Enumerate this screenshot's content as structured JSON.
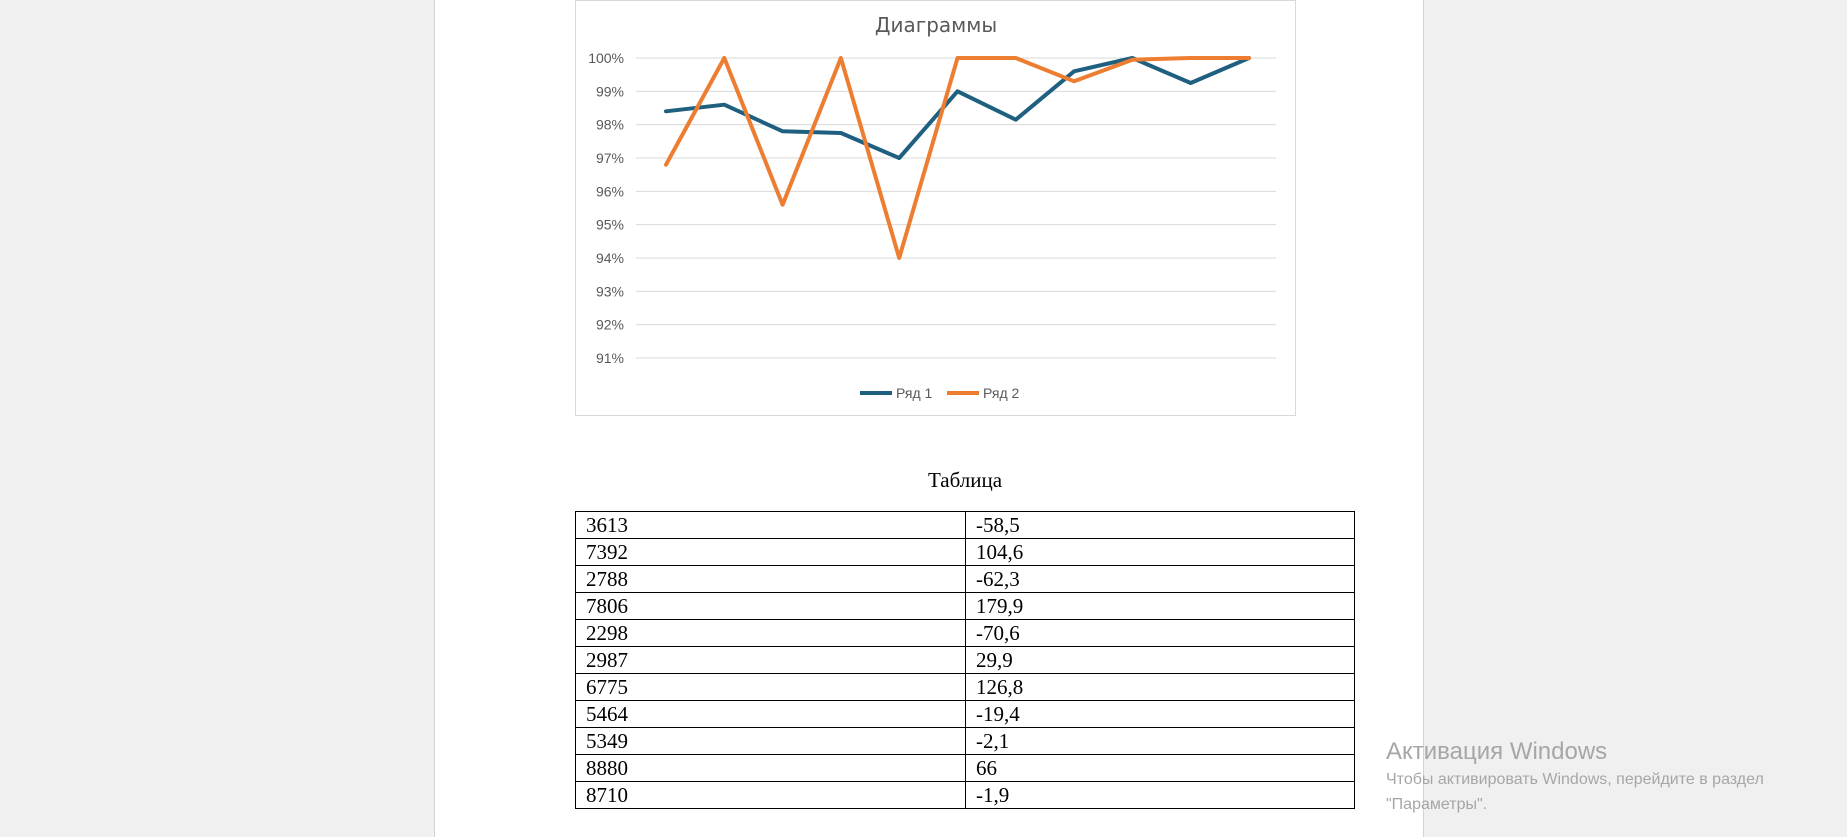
{
  "chart_data": {
    "type": "line",
    "title": "Диаграммы",
    "ytick_labels": [
      "100%",
      "99%",
      "98%",
      "97%",
      "96%",
      "95%",
      "94%",
      "93%",
      "92%",
      "91%"
    ],
    "ylim": [
      91,
      100
    ],
    "x": [
      1,
      2,
      3,
      4,
      5,
      6,
      7,
      8,
      9,
      10,
      11
    ],
    "series": [
      {
        "name": "Ряд 1",
        "color": "#1f5f7f",
        "values": [
          98.4,
          98.6,
          97.8,
          97.75,
          97.0,
          99.0,
          98.15,
          99.6,
          100.0,
          99.25,
          100.0
        ]
      },
      {
        "name": "Ряд 2",
        "color": "#ed7d31",
        "values": [
          96.8,
          100.0,
          95.6,
          100.0,
          94.0,
          100.0,
          100.0,
          99.3,
          99.95,
          100.0,
          100.0
        ]
      }
    ],
    "grid": true,
    "legend": "bottom"
  },
  "table": {
    "caption": "Таблица",
    "rows": [
      [
        "3613",
        "-58,5"
      ],
      [
        "7392",
        "104,6"
      ],
      [
        "2788",
        "-62,3"
      ],
      [
        "7806",
        "179,9"
      ],
      [
        "2298",
        "-70,6"
      ],
      [
        "2987",
        "29,9"
      ],
      [
        "6775",
        "126,8"
      ],
      [
        "5464",
        "-19,4"
      ],
      [
        "5349",
        "-2,1"
      ],
      [
        "8880",
        "66"
      ],
      [
        "8710",
        "-1,9"
      ]
    ]
  },
  "watermark": {
    "title": "Активация Windows",
    "line1": "Чтобы активировать Windows, перейдите в раздел",
    "line2": "\"Параметры\"."
  }
}
